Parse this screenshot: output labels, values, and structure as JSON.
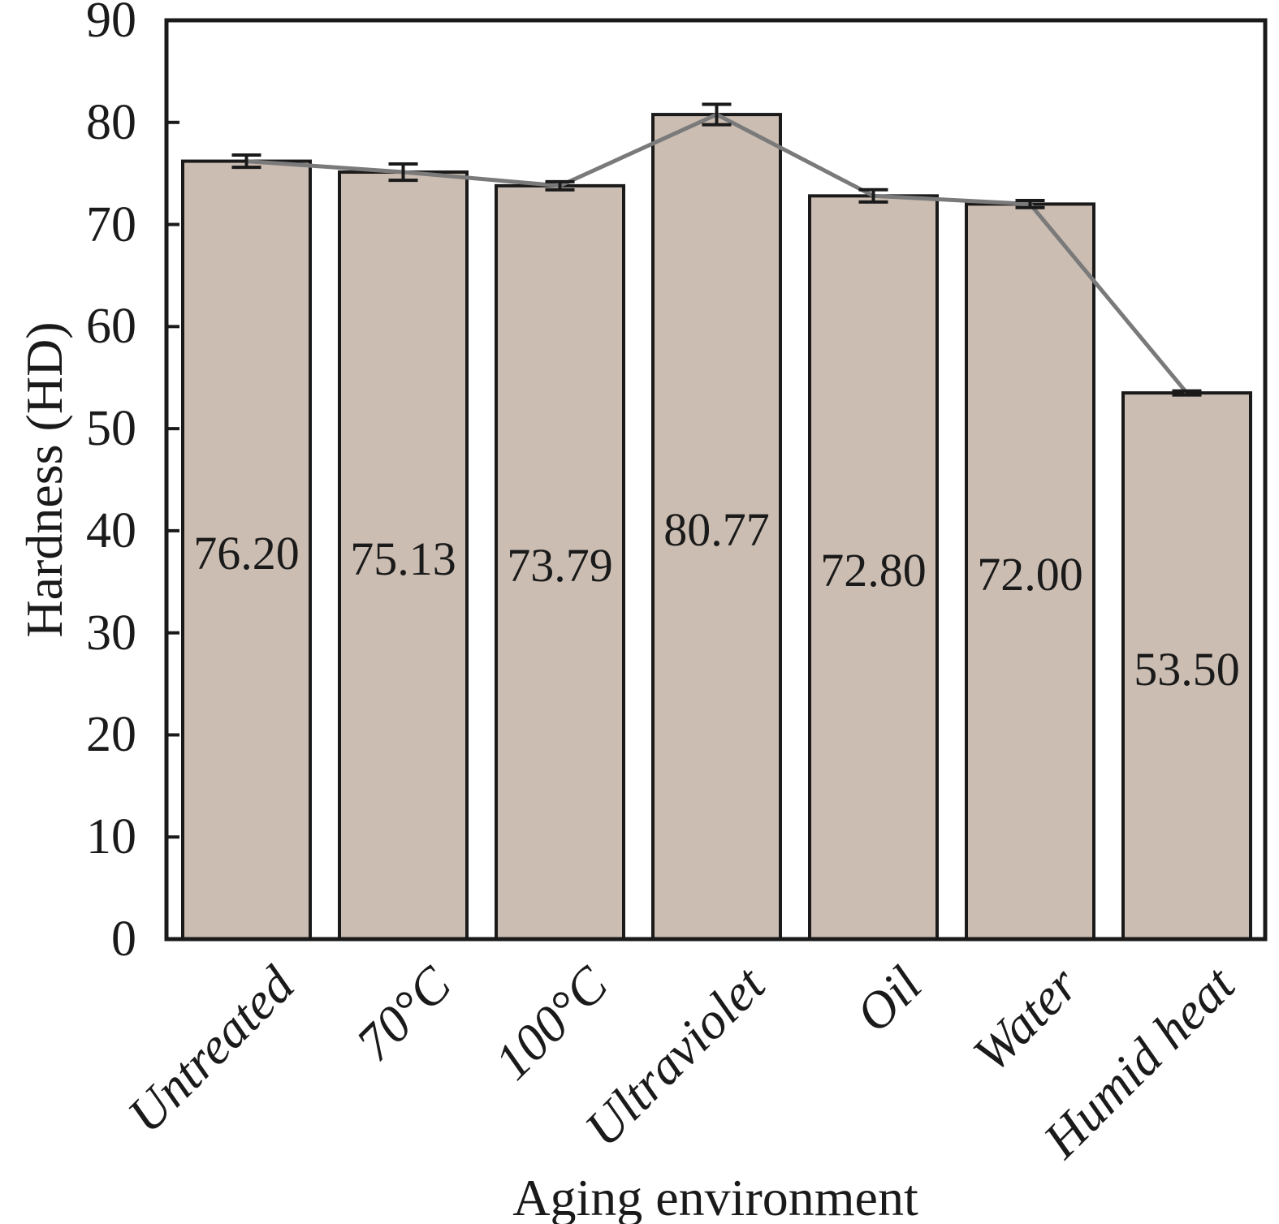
{
  "chart_data": {
    "type": "bar",
    "title": "",
    "xlabel": "Aging environment",
    "ylabel": "Hardness (HD)",
    "categories": [
      "Untreated",
      "70°C",
      "100°C",
      "Ultraviolet",
      "Oil",
      "Water",
      "Humid heat"
    ],
    "values": [
      76.2,
      75.13,
      73.79,
      80.77,
      72.8,
      72.0,
      53.5
    ],
    "value_labels": [
      "76.20",
      "75.13",
      "73.79",
      "80.77",
      "72.80",
      "72.00",
      "53.50"
    ],
    "errors": [
      0.6,
      0.8,
      0.4,
      1.0,
      0.6,
      0.35,
      0.2
    ],
    "overlay_line_through_bar_tops": true,
    "ylim": [
      0,
      90
    ],
    "ytick_interval": 10,
    "ytick_labels": [
      "0",
      "10",
      "20",
      "30",
      "40",
      "50",
      "60",
      "70",
      "80",
      "90"
    ],
    "grid": false,
    "legend": null,
    "colors": {
      "bar_fill": "#cbbdb2",
      "bar_edge": "#1a1a1a",
      "line": "#7a7a7a",
      "error": "#1a1a1a",
      "axis": "#1a1a1a",
      "text": "#1a1a1a",
      "background": "#ffffff"
    }
  }
}
